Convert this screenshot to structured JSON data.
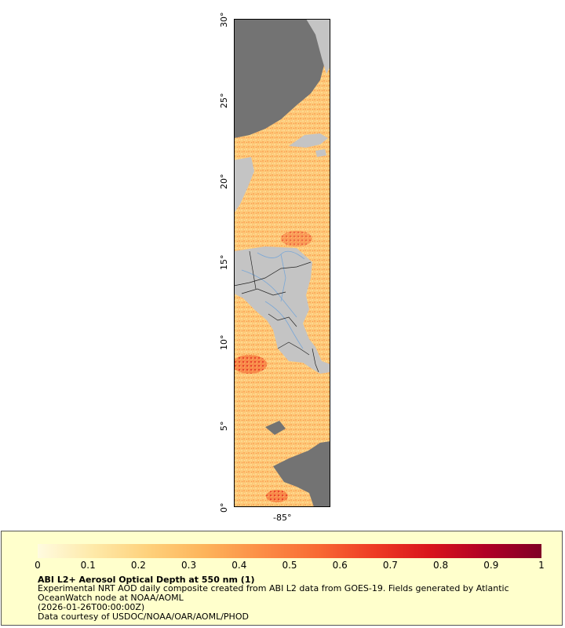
{
  "map": {
    "lat_labels": [
      "0°",
      "5°",
      "10°",
      "15°",
      "20°",
      "25°",
      "30°"
    ],
    "lon_labels": [
      "-85°"
    ],
    "colors": {
      "ocean_scale_low": "#fff5cc",
      "ocean_scale_high": "#800026",
      "land": "#c4c4c4",
      "no_data": "#737373",
      "rivers": "#7aa7d6",
      "borders": "#222222"
    }
  },
  "legend": {
    "ticks": [
      "0",
      "0.1",
      "0.2",
      "0.3",
      "0.4",
      "0.5",
      "0.6",
      "0.7",
      "0.8",
      "0.9",
      "1"
    ],
    "title": "ABI L2+ Aerosol Optical Depth at 550 nm (1)",
    "lines": [
      "Experimental NRT AOD daily composite created from ABI L2 data from GOES-19. Fields generated by Atlantic",
      "OceanWatch node at NOAA/AOML",
      "(2026-01-26T00:00:00Z)",
      "Data courtesy of USDOC/NOAA/OAR/AOML/PHOD"
    ],
    "colors": [
      "#fffbe0",
      "#fee9a8",
      "#fed07a",
      "#fdb35a",
      "#fc8d46",
      "#f86a34",
      "#ee3b25",
      "#d9151c",
      "#b00026",
      "#800026"
    ]
  }
}
